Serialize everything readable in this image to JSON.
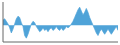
{
  "chart_data": {
    "type": "area",
    "values": [
      0.4,
      0.5,
      0.3,
      0.1,
      -0.2,
      -0.6,
      -0.3,
      0.1,
      0.5,
      0.7,
      0.6,
      0.2,
      -0.1,
      -0.8,
      -1.0,
      -0.7,
      -0.3,
      0.1,
      0.3,
      0.2,
      -0.1,
      -0.3,
      -0.5,
      -0.4,
      -0.2,
      -0.4,
      -0.3,
      -0.5,
      -0.3,
      -0.2,
      -0.4,
      -0.3,
      -0.1,
      -0.3,
      -0.4,
      -0.2,
      -0.4,
      -0.3,
      -0.1,
      -0.2,
      -0.1,
      0.1,
      0.3,
      0.6,
      0.9,
      1.2,
      1.4,
      1.1,
      0.8,
      1.0,
      1.3,
      1.0,
      0.6,
      0.3,
      0.0,
      -0.3,
      -0.6,
      -0.8,
      -0.5,
      -0.3,
      -0.5,
      -0.7,
      -0.5,
      -0.3,
      -0.5,
      -0.7,
      -0.5,
      -0.3,
      -0.1,
      -0.4
    ],
    "color": "#4fa3d8",
    "xlim": [
      0,
      69
    ],
    "ylim": [
      -1.3,
      1.8
    ],
    "tick_labels": false
  }
}
